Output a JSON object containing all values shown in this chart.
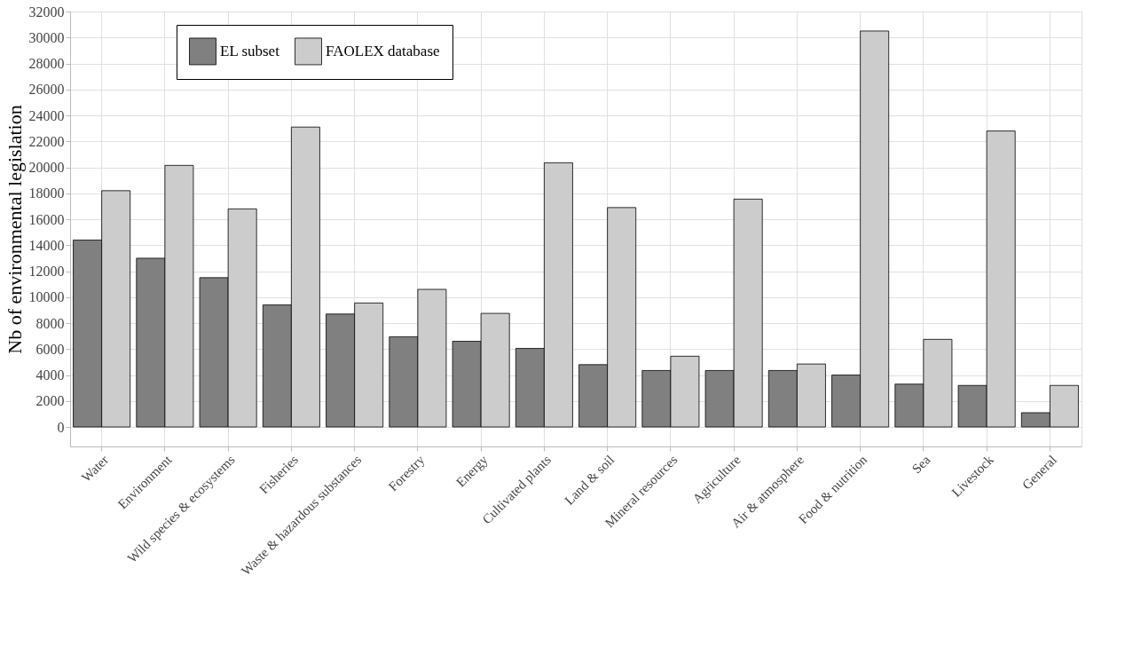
{
  "chart_data": {
    "type": "bar",
    "ylabel": "Nb of environmental legislation",
    "categories": [
      "Water",
      "Environment",
      "Wild species & ecosystems",
      "Fisheries",
      "Waste & hazardous substances",
      "Forestry",
      "Energy",
      "Cultivated plants",
      "Land & soil",
      "Mineral resources",
      "Agriculture",
      "Air & atmosphere",
      "Food & nutrition",
      "Sea",
      "Livestock",
      "General"
    ],
    "series": [
      {
        "name": "EL subset",
        "color": "#808080",
        "values": [
          14400,
          13000,
          11500,
          9400,
          8700,
          6950,
          6600,
          6050,
          4800,
          4350,
          4350,
          4350,
          4000,
          3300,
          3200,
          1100
        ]
      },
      {
        "name": "FAOLEX database",
        "color": "#cccccc",
        "values": [
          18200,
          20150,
          16800,
          23100,
          9550,
          10600,
          8750,
          20350,
          16900,
          5450,
          17550,
          4850,
          30500,
          6750,
          22800,
          3200
        ]
      }
    ],
    "ylim": [
      -1500,
      32000
    ],
    "yticks": [
      0,
      2000,
      4000,
      6000,
      8000,
      10000,
      12000,
      14000,
      16000,
      18000,
      20000,
      22000,
      24000,
      26000,
      28000,
      30000,
      32000
    ],
    "grid": true,
    "legend": "top left"
  }
}
